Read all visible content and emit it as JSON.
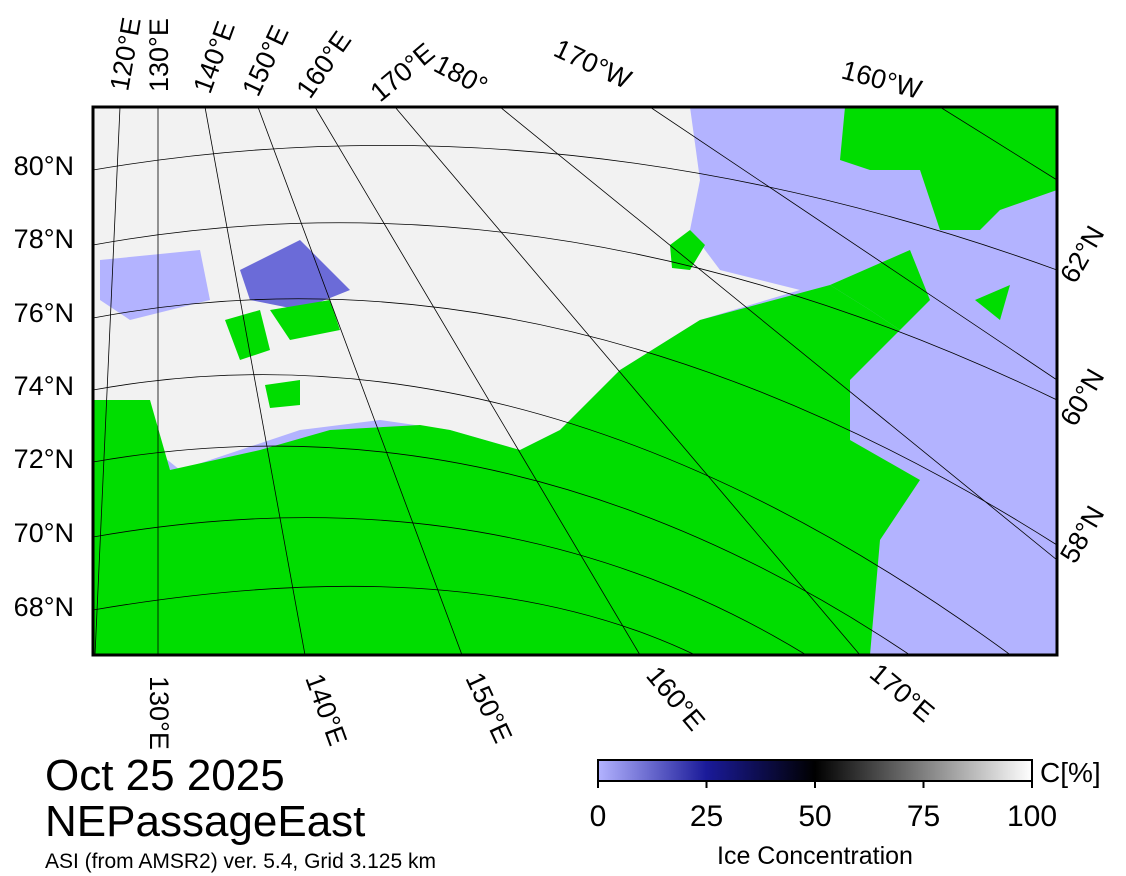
{
  "map": {
    "top_labels": [
      "120°E",
      "130°E",
      "140°E",
      "150°E",
      "160°E",
      "170°E",
      "180°",
      "170°W",
      "160°W"
    ],
    "left_labels": [
      "80°N",
      "78°N",
      "76°N",
      "74°N",
      "72°N",
      "70°N",
      "68°N"
    ],
    "right_labels": [
      "62°N",
      "60°N",
      "58°N"
    ],
    "bottom_labels": [
      "130°E",
      "140°E",
      "150°E",
      "160°E",
      "170°E"
    ]
  },
  "info": {
    "date": "Oct 25 2025",
    "region": "NEPassageEast",
    "source": "ASI (from AMSR2) ver. 5.4,  Grid 3.125 km"
  },
  "colorbar": {
    "title": "Ice Concentration",
    "unit": "C[%]",
    "lim": [
      0,
      100
    ],
    "ticks": [
      0,
      25,
      50,
      75,
      100
    ]
  }
}
